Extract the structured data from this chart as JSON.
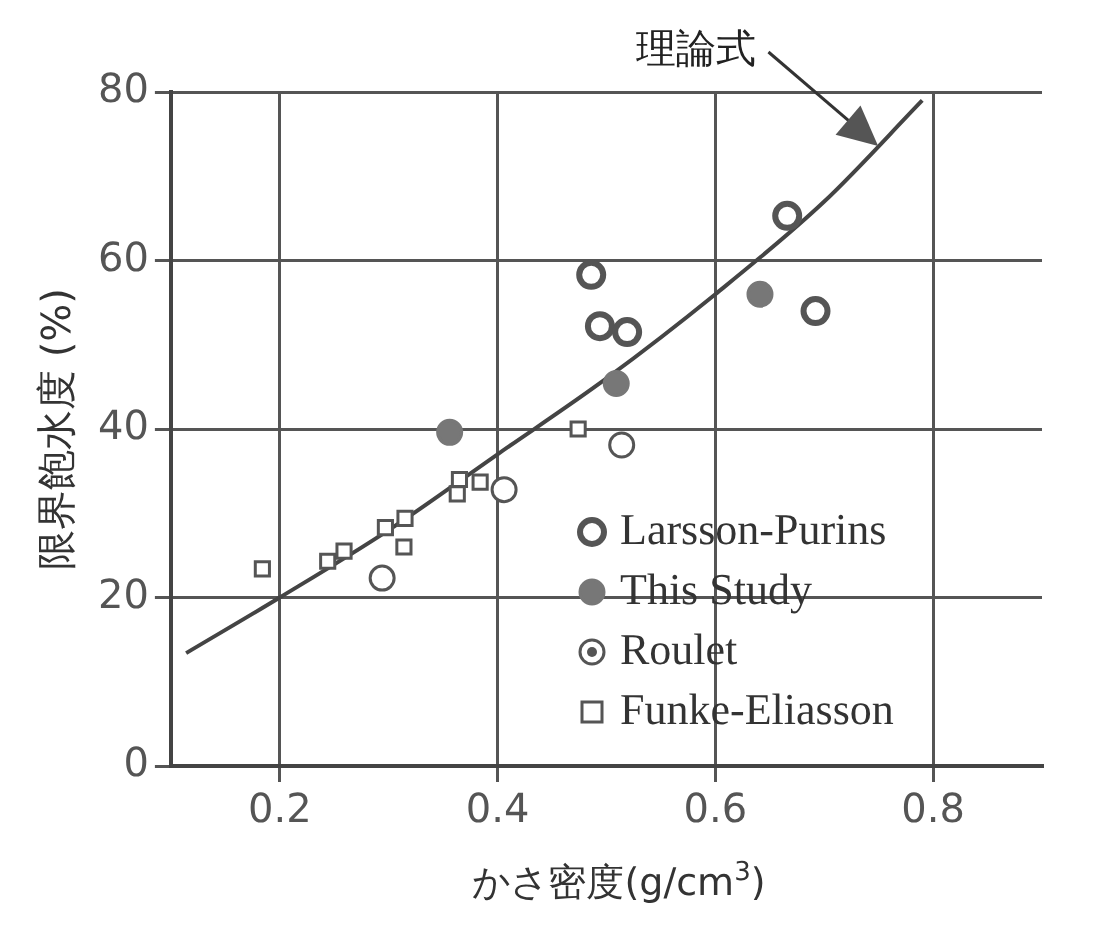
{
  "chart_data": {
    "type": "scatter",
    "xlabel": "かさ密度(g/cm$^{3}$)",
    "ylabel": "限界飽水度 (%)",
    "xlim": [
      0.1,
      0.9
    ],
    "ylim": [
      0,
      80
    ],
    "xticks": [
      0.2,
      0.4,
      0.6,
      0.8
    ],
    "yticks": [
      0,
      20,
      40,
      60,
      80
    ],
    "grid": true,
    "legend": "bottom right",
    "annotations": [
      "理論式"
    ],
    "series": [
      {
        "name": "Larsson-Purins",
        "color": "#555555",
        "marker": "circle",
        "x": [
          0.486,
          0.494,
          0.519,
          0.666,
          0.692
        ],
        "values": [
          58.3,
          52.2,
          51.5,
          65.3,
          54.0
        ]
      },
      {
        "name": "This Study",
        "color": "#777777",
        "marker": "circle",
        "x": [
          0.356,
          0.509,
          0.641
        ],
        "values": [
          39.6,
          45.4,
          56.0
        ]
      },
      {
        "name": "Roulet",
        "color": "#555555",
        "marker": "circle",
        "x": [
          0.294,
          0.406,
          0.514
        ],
        "values": [
          22.3,
          32.8,
          38.1
        ]
      },
      {
        "name": "Funke-Eliasson",
        "color": "#555555",
        "marker": "square",
        "x": [
          0.184,
          0.244,
          0.259,
          0.297,
          0.315,
          0.314,
          0.365,
          0.363,
          0.384,
          0.474
        ],
        "values": [
          23.4,
          24.3,
          25.5,
          28.3,
          29.4,
          26.0,
          34.0,
          32.3,
          33.7,
          40.0
        ]
      },
      {
        "type": "line",
        "color": "#444444",
        "marker": "none",
        "x": [
          0.114,
          0.2,
          0.3,
          0.4,
          0.5,
          0.6,
          0.7,
          0.79
        ],
        "values": [
          13.4,
          20,
          28,
          37,
          46,
          56,
          67,
          79
        ]
      }
    ]
  }
}
